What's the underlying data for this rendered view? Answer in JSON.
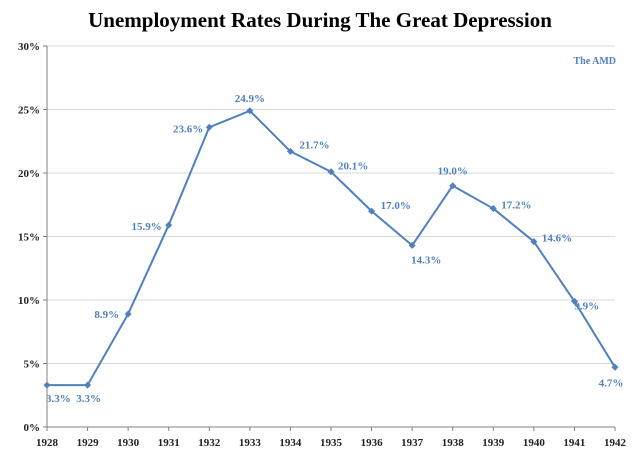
{
  "chart_data": {
    "type": "line",
    "title": "Unemployment Rates During The Great Depression",
    "source_label": "The AMD",
    "x": [
      "1928",
      "1929",
      "1930",
      "1931",
      "1932",
      "1933",
      "1934",
      "1935",
      "1936",
      "1937",
      "1938",
      "1939",
      "1940",
      "1941",
      "1942"
    ],
    "series": [
      {
        "values": [
          3.3,
          3.3,
          8.9,
          15.9,
          23.6,
          24.9,
          21.7,
          20.1,
          17.0,
          14.3,
          19.0,
          17.2,
          14.6,
          9.9,
          4.7
        ],
        "labels": [
          "3.3%",
          "3.3%",
          "8.9%",
          "15.9%",
          "23.6%",
          "24.9%",
          "21.7%",
          "20.1%",
          "17.0%",
          "14.3%",
          "19.0%",
          "17.2%",
          "14.6%",
          "9.9%",
          "4.7%"
        ],
        "color": "#4f81bd"
      }
    ],
    "ylim": [
      0,
      30
    ],
    "yticks": [
      0,
      5,
      10,
      15,
      20,
      25,
      30
    ],
    "ytick_labels": [
      "0%",
      "5%",
      "10%",
      "15%",
      "20%",
      "25%",
      "30%"
    ],
    "grid": true,
    "grid_color": "#d9d9d9",
    "axis_color": "#808080"
  }
}
